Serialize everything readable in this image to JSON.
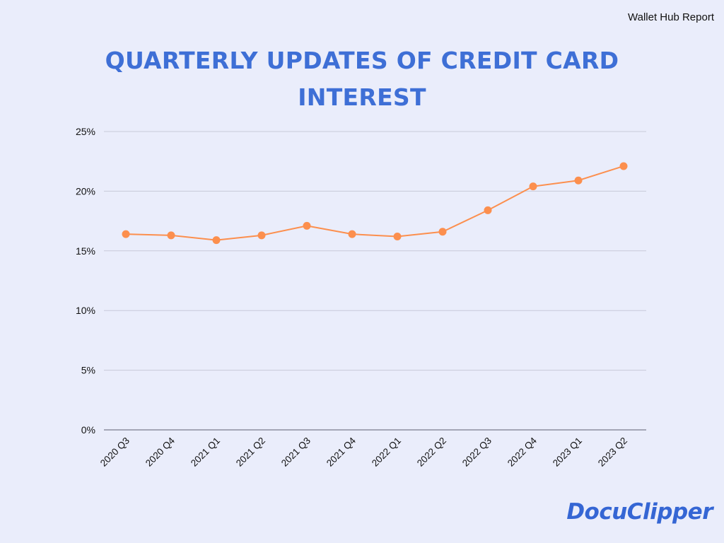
{
  "header": {
    "source_label": "Wallet Hub Report",
    "title_line1": "QUARTERLY UPDATES OF CREDIT CARD",
    "title_line2": "INTEREST"
  },
  "footer": {
    "logo_text": "DocuClipper"
  },
  "colors": {
    "background": "#eaedfb",
    "title": "#3e6fd6",
    "series": "#fc8f4e",
    "grid": "#c8cad9",
    "axis": "#7a7d8c",
    "logo": "#3566d4"
  },
  "chart_data": {
    "type": "line",
    "title": "QUARTERLY UPDATES OF CREDIT CARD INTEREST",
    "xlabel": "",
    "ylabel": "",
    "categories": [
      "2020 Q3",
      "2020 Q4",
      "2021 Q1",
      "2021 Q2",
      "2021 Q3",
      "2021 Q4",
      "2022 Q1",
      "2022 Q2",
      "2022 Q3",
      "2022 Q4",
      "2023 Q1",
      "2023 Q2"
    ],
    "series": [
      {
        "values": [
          16.4,
          16.3,
          15.9,
          16.3,
          17.1,
          16.4,
          16.2,
          16.6,
          18.4,
          20.4,
          20.9,
          22.1
        ]
      }
    ],
    "ylim": [
      0,
      25
    ],
    "yticks": [
      0,
      5,
      10,
      15,
      20,
      25
    ],
    "ytick_labels": [
      "0%",
      "5%",
      "10%",
      "15%",
      "20%",
      "25%"
    ],
    "grid": true,
    "legend": "none",
    "markers": true
  }
}
